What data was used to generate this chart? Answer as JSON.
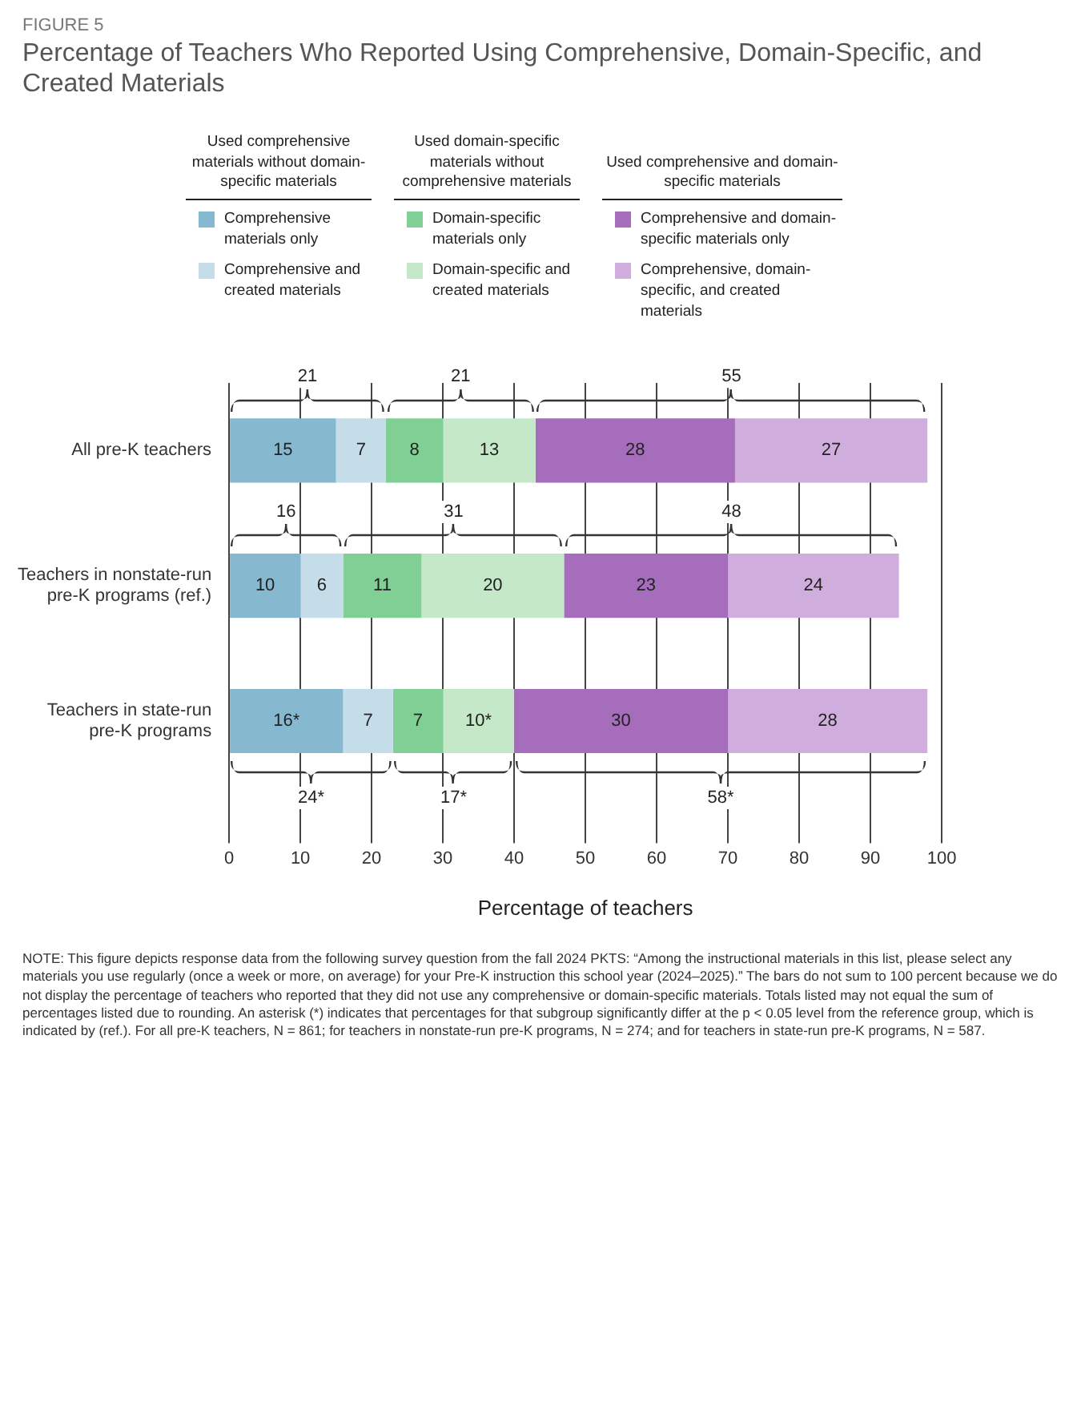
{
  "chart_data": {
    "type": "bar",
    "orientation": "horizontal",
    "stacked": true,
    "subtitle": "FIGURE 5",
    "title": "Percentage of Teachers Who Reported Using Comprehensive, Domain-Specific, and Created Materials",
    "xlabel": "Percentage of teachers",
    "categories": [
      "All pre-K teachers",
      "Teachers in nonstate-run pre-K programs (ref.)",
      "Teachers in state-run pre-K programs"
    ],
    "series": [
      {
        "name": "Comprehensive materials only",
        "color": "#86b8cf",
        "values": [
          15,
          10,
          16
        ],
        "value_labels": [
          "15",
          "10",
          "16*"
        ]
      },
      {
        "name": "Comprehensive and created materials",
        "color": "#c5dde8",
        "values": [
          7,
          6,
          7
        ],
        "value_labels": [
          "7",
          "6",
          "7"
        ]
      },
      {
        "name": "Domain-specific materials only",
        "color": "#80cf94",
        "values": [
          8,
          11,
          7
        ],
        "value_labels": [
          "8",
          "11",
          "7"
        ]
      },
      {
        "name": "Domain-specific and created materials",
        "color": "#c5e8c8",
        "values": [
          13,
          20,
          10
        ],
        "value_labels": [
          "13",
          "20",
          "10*"
        ]
      },
      {
        "name": "Comprehensive and domain-specific materials only",
        "color": "#a56dbb",
        "values": [
          28,
          23,
          30
        ],
        "value_labels": [
          "28",
          "23",
          "30"
        ]
      },
      {
        "name": "Comprehensive, domain-specific, and created materials",
        "color": "#cfaedd",
        "values": [
          27,
          24,
          28
        ],
        "value_labels": [
          "27",
          "24",
          "28"
        ]
      }
    ],
    "xlim": [
      0,
      100
    ],
    "xticks": [
      0,
      10,
      20,
      30,
      40,
      50,
      60,
      70,
      80,
      90,
      100
    ],
    "grid": "x",
    "legend": "top",
    "annotations": [
      "Used comprehensive materials without domain-specific materials",
      "Used domain-specific materials without comprehensive materials",
      "Used comprehensive and domain-specific materials",
      "21",
      "21",
      "55",
      "16",
      "31",
      "48",
      "24*",
      "17*",
      "58*",
      "NOTE: This figure depicts response data from the following survey question from the fall 2024 PKTS: “Among the instructional materials in this list, please select any materials you use regularly (once a week or more, on average) for your Pre-K instruction this school year (2024–2025).” The bars do not sum to 100 percent because we do not display the percentage of teachers who reported that they did not use any comprehensive or domain-specific materials. Totals listed may not equal the sum of percentages listed due to rounding. An asterisk (*) indicates that percentages for that subgroup significantly differ at the p < 0.05 level from the reference group, which is indicated by (ref.). For all pre-K teachers, N = 861; for teachers in nonstate-run pre-K programs, N = 274; and for teachers in state-run pre-K programs, N = 587."
    ]
  }
}
